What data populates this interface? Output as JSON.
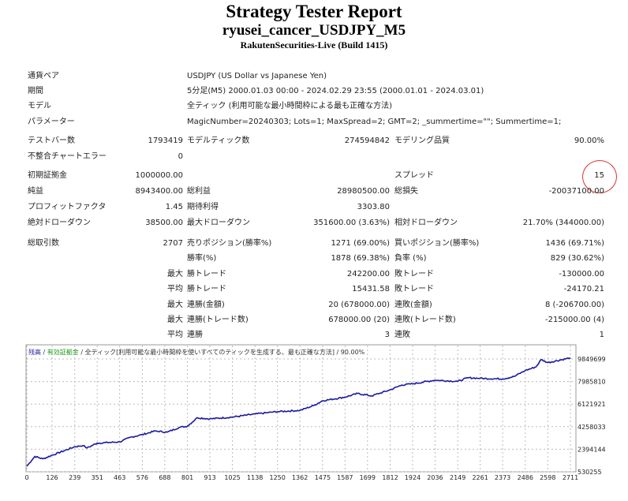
{
  "header": {
    "title": "Strategy Tester Report",
    "expert": "ryusei_cancer_USDJPY_M5",
    "server": "RakutenSecurities-Live (Build 1415)"
  },
  "info": [
    {
      "label": "通貨ペア",
      "value": "USDJPY (US Dollar vs Japanese Yen)"
    },
    {
      "label": "期間",
      "value": "5分足(M5) 2000.01.03 00:00 - 2024.02.29 23:55 (2000.01.01 - 2024.03.01)"
    },
    {
      "label": "モデル",
      "value": "全ティック (利用可能な最小時間枠による最も正確な方法)"
    },
    {
      "label": "パラメーター",
      "value": "MagicNumber=20240303; Lots=1; MaxSpread=2; GMT=2; _summertime=\"\"; Summertime=1;"
    }
  ],
  "stats": {
    "bars_label": "テストバー数",
    "bars": "1793419",
    "ticks_label": "モデルティック数",
    "ticks": "274594842",
    "quality_label": "モデリング品質",
    "quality": "90.00%",
    "errors_label": "不整合チャートエラー",
    "errors": "0",
    "deposit_label": "初期証拠金",
    "deposit": "1000000.00",
    "spread_label": "スプレッド",
    "spread": "15",
    "net_label": "純益",
    "net": "8943400.00",
    "gross_profit_label": "総利益",
    "gross_profit": "28980500.00",
    "gross_loss_label": "総損失",
    "gross_loss": "-20037100.00",
    "pf_label": "プロフィットファクタ",
    "pf": "1.45",
    "expected_label": "期待利得",
    "expected": "3303.80",
    "abs_dd_label": "絶対ドローダウン",
    "abs_dd": "38500.00",
    "max_dd_label": "最大ドローダウン",
    "max_dd": "351600.00 (3.63%)",
    "rel_dd_label": "相対ドローダウン",
    "rel_dd": "21.70% (344000.00)",
    "trades_label": "総取引数",
    "trades": "2707",
    "short_label": "売りポジション(勝率%)",
    "short": "1271 (69.00%)",
    "long_label": "買いポジション(勝率%)",
    "long": "1436 (69.71%)",
    "win_label": "勝率(%)",
    "win": "1878 (69.38%)",
    "loss_label": "負率 (%)",
    "loss": "829 (30.62%)",
    "max_prefix": "最大",
    "avg_prefix": "平均",
    "largest_win_label": "勝トレード",
    "largest_win": "242200.00",
    "largest_loss_label": "敗トレード",
    "largest_loss": "-130000.00",
    "avg_win_label": "勝トレード",
    "avg_win": "15431.58",
    "avg_loss_label": "敗トレード",
    "avg_loss": "-24170.21",
    "cons_win_label": "連勝(金額)",
    "cons_win": "20 (678000.00)",
    "cons_loss_label": "連敗(金額)",
    "cons_loss": "8 (-206700.00)",
    "cons_profit_label": "連勝(トレード数)",
    "cons_profit": "678000.00 (20)",
    "cons_lossamt_label": "連敗(トレード数)",
    "cons_lossamt": "-215000.00 (4)",
    "avg_cons_win_label": "連勝",
    "avg_cons_win": "3",
    "avg_cons_loss_label": "連敗",
    "avg_cons_loss": "1"
  },
  "chart_data": {
    "type": "line",
    "legend": {
      "balance": "残高",
      "equity": "有効証拠金",
      "sep": " / ",
      "model": "全ティック[利用可能な最小時間枠を使いすべてのティックを生成する、最も正確な方法]",
      "quality": " / 90.00%"
    },
    "x_ticks": [
      "0",
      "126",
      "239",
      "351",
      "463",
      "576",
      "688",
      "801",
      "913",
      "1025",
      "1138",
      "1250",
      "1362",
      "1475",
      "1587",
      "1699",
      "1812",
      "1924",
      "2036",
      "2149",
      "2261",
      "2373",
      "2486",
      "2598",
      "2711"
    ],
    "y_ticks": [
      "9849699",
      "7985810",
      "6121921",
      "4258033",
      "2394144",
      "530255"
    ],
    "xlim": [
      0,
      2730
    ],
    "ylim": [
      530255,
      10500000
    ],
    "series": [
      {
        "name": "残高",
        "color": "#1a1aa0",
        "points": [
          [
            0,
            1000000
          ],
          [
            40,
            1800000
          ],
          [
            80,
            1600000
          ],
          [
            126,
            1900000
          ],
          [
            239,
            2600000
          ],
          [
            280,
            2700000
          ],
          [
            300,
            2500000
          ],
          [
            351,
            2900000
          ],
          [
            463,
            3000000
          ],
          [
            520,
            3400000
          ],
          [
            576,
            3600000
          ],
          [
            640,
            3900000
          ],
          [
            700,
            3800000
          ],
          [
            760,
            4200000
          ],
          [
            801,
            4300000
          ],
          [
            850,
            5000000
          ],
          [
            913,
            4900000
          ],
          [
            1025,
            5050000
          ],
          [
            1138,
            5300000
          ],
          [
            1250,
            5500000
          ],
          [
            1362,
            5600000
          ],
          [
            1430,
            6000000
          ],
          [
            1475,
            6400000
          ],
          [
            1587,
            6700000
          ],
          [
            1650,
            7000000
          ],
          [
            1720,
            6800000
          ],
          [
            1812,
            7300000
          ],
          [
            1870,
            7700000
          ],
          [
            1924,
            7800000
          ],
          [
            2036,
            8100000
          ],
          [
            2149,
            8000000
          ],
          [
            2200,
            8300000
          ],
          [
            2261,
            8250000
          ],
          [
            2373,
            8200000
          ],
          [
            2430,
            8400000
          ],
          [
            2486,
            8900000
          ],
          [
            2540,
            9200000
          ],
          [
            2565,
            9800000
          ],
          [
            2598,
            9550000
          ],
          [
            2711,
            9943400
          ]
        ]
      }
    ]
  }
}
